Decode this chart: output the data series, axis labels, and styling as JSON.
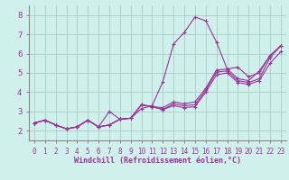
{
  "background_color": "#d0f0ec",
  "grid_color": "#aaccc8",
  "line_color": "#993399",
  "marker": "+",
  "xlabel": "Windchill (Refroidissement éolien,°C)",
  "ylabel_ticks": [
    2,
    3,
    4,
    5,
    6,
    7,
    8
  ],
  "xlim": [
    -0.5,
    23.5
  ],
  "ylim": [
    1.5,
    8.5
  ],
  "xlabel_ticks": [
    0,
    1,
    2,
    3,
    4,
    5,
    6,
    7,
    8,
    9,
    10,
    11,
    12,
    13,
    14,
    15,
    16,
    17,
    18,
    19,
    20,
    21,
    22,
    23
  ],
  "series": [
    [
      2.4,
      2.55,
      2.3,
      2.1,
      2.2,
      2.55,
      2.2,
      3.0,
      2.6,
      2.65,
      3.15,
      3.3,
      4.55,
      6.5,
      7.1,
      7.9,
      7.7,
      6.6,
      5.2,
      5.3,
      4.8,
      5.0,
      5.9,
      6.4
    ],
    [
      2.4,
      2.55,
      2.3,
      2.1,
      2.2,
      2.55,
      2.2,
      2.3,
      2.6,
      2.65,
      3.35,
      3.25,
      3.2,
      3.5,
      3.4,
      3.5,
      4.2,
      5.15,
      5.2,
      4.7,
      4.6,
      5.1,
      5.9,
      6.4
    ],
    [
      2.4,
      2.55,
      2.3,
      2.1,
      2.2,
      2.55,
      2.2,
      2.3,
      2.6,
      2.65,
      3.35,
      3.25,
      3.1,
      3.4,
      3.3,
      3.35,
      4.1,
      5.05,
      5.1,
      4.6,
      4.5,
      4.7,
      5.8,
      6.4
    ],
    [
      2.4,
      2.55,
      2.3,
      2.1,
      2.2,
      2.55,
      2.2,
      2.3,
      2.6,
      2.65,
      3.35,
      3.25,
      3.1,
      3.3,
      3.2,
      3.25,
      4.0,
      4.9,
      5.0,
      4.5,
      4.4,
      4.6,
      5.5,
      6.1
    ]
  ],
  "tick_fontsize": 5.5,
  "xlabel_fontsize": 6.0,
  "ytick_fontsize": 6.5
}
